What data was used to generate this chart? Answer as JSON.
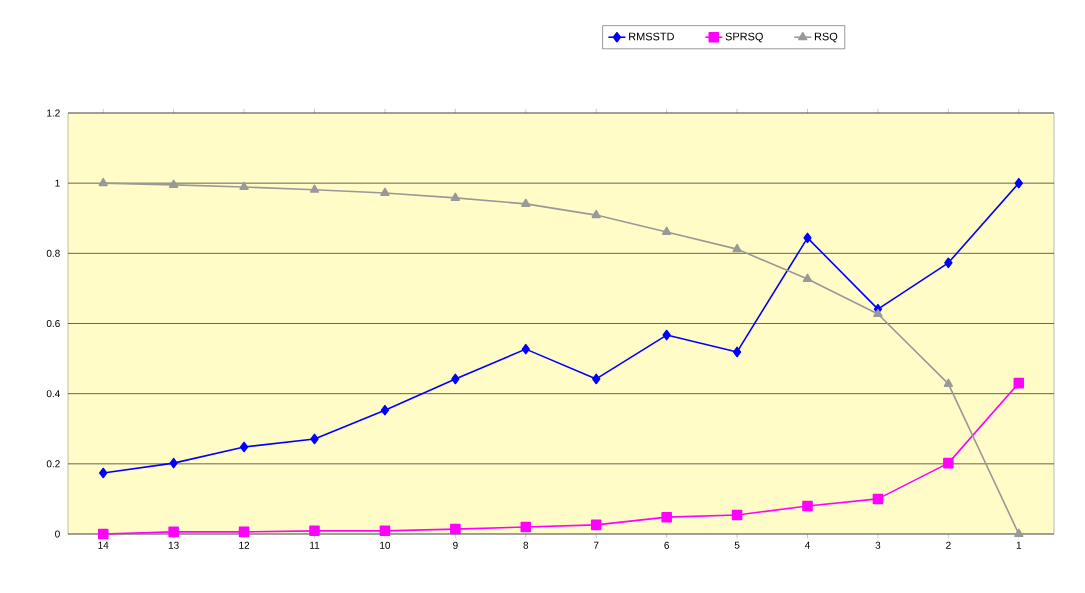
{
  "chart_data": {
    "type": "line",
    "categories": [
      "14",
      "13",
      "12",
      "11",
      "10",
      "9",
      "8",
      "7",
      "6",
      "5",
      "4",
      "3",
      "2",
      "1"
    ],
    "series": [
      {
        "name": "RMSSTD",
        "color": "#0000ff",
        "marker": "diamond",
        "values": [
          0.174,
          0.202,
          0.248,
          0.271,
          0.353,
          0.442,
          0.527,
          0.442,
          0.567,
          0.519,
          0.844,
          0.641,
          0.773,
          1.0
        ]
      },
      {
        "name": "SPRSQ",
        "color": "#ff00ff",
        "marker": "square",
        "values": [
          0,
          0.006,
          0.006,
          0.009,
          0.009,
          0.014,
          0.02,
          0.026,
          0.048,
          0.054,
          0.08,
          0.1,
          0.202,
          0.43
        ]
      },
      {
        "name": "RSQ",
        "color": "#999999",
        "marker": "triangle",
        "values": [
          1.0,
          0.995,
          0.989,
          0.981,
          0.972,
          0.958,
          0.941,
          0.909,
          0.861,
          0.812,
          0.727,
          0.627,
          0.428,
          0
        ]
      }
    ],
    "ylim": [
      0,
      1.2
    ],
    "yticks": [
      0,
      0.2,
      0.4,
      0.6,
      0.8,
      1,
      1.2
    ],
    "grid": "y",
    "legend": "top",
    "line_style": "solid"
  }
}
